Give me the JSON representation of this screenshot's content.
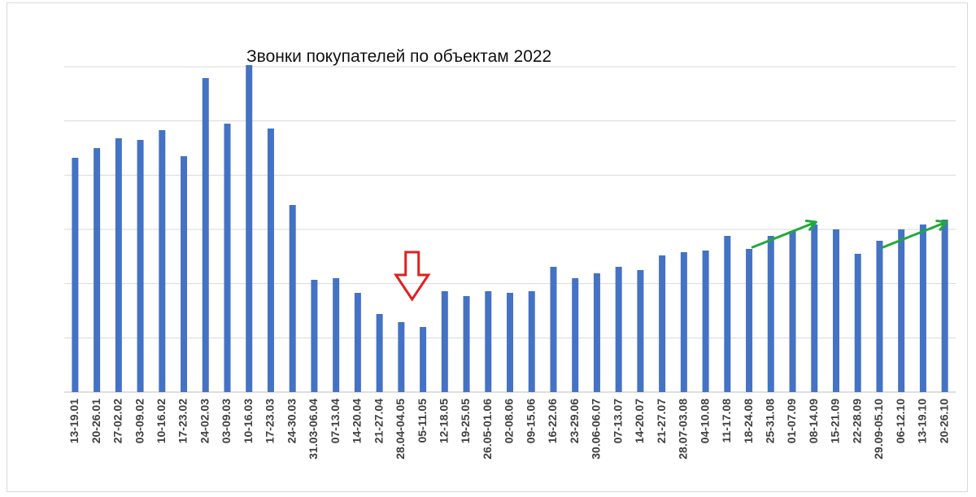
{
  "chart_data": {
    "type": "bar",
    "title": "Звонки покупателей по объектам 2022",
    "xlabel": "",
    "ylabel": "",
    "grid": true,
    "ylim": [
      0,
      100
    ],
    "categories": [
      "13-19.01",
      "20-26.01",
      "27-02.02",
      "03-09.02",
      "10-16.02",
      "17-23.02",
      "24-02.03",
      "03-09.03",
      "10-16.03",
      "17-23.03",
      "24-30.03",
      "31.03-06.04",
      "07-13.04",
      "14-20.04",
      "21-27.04",
      "28.04-04.05",
      "05-11.05",
      "12-18.05",
      "19-25.05",
      "26.05-01.06",
      "02-08.06",
      "09-15.06",
      "16-22.06",
      "23-29.06",
      "30.06-06.07",
      "07-13.07",
      "14-20.07",
      "21-27.07",
      "28.07-03.08",
      "04-10.08",
      "11-17.08",
      "18-24.08",
      "25-31.08",
      "01-07.09",
      "08-14.09",
      "15-21.09",
      "22-28.09",
      "29.09-05.10",
      "06-12.10",
      "13-19.10",
      "20-26.10"
    ],
    "values": [
      72,
      75,
      78,
      77.5,
      80.5,
      72.5,
      96.5,
      82.5,
      100.5,
      81,
      57.5,
      34.5,
      35,
      30.5,
      24,
      21.5,
      20,
      31,
      29.5,
      31,
      30.5,
      31,
      38.5,
      35,
      36.5,
      38.5,
      37.5,
      42,
      43,
      43.5,
      48,
      44,
      48,
      49.5,
      51.5,
      50,
      42.5,
      46.5,
      50,
      51.5,
      53
    ],
    "colors": {
      "bar": "#4472c4",
      "grid": "#d9d9d9",
      "down_arrow": "#e02020",
      "up_arrow": "#22a83a"
    },
    "annotations": [
      {
        "type": "down-arrow-icon",
        "near_category": "28.04-04.05"
      },
      {
        "type": "up-trend-arrow-icon",
        "near_category": "08-14.09"
      },
      {
        "type": "up-trend-arrow-icon",
        "near_category": "20-26.10"
      }
    ]
  }
}
